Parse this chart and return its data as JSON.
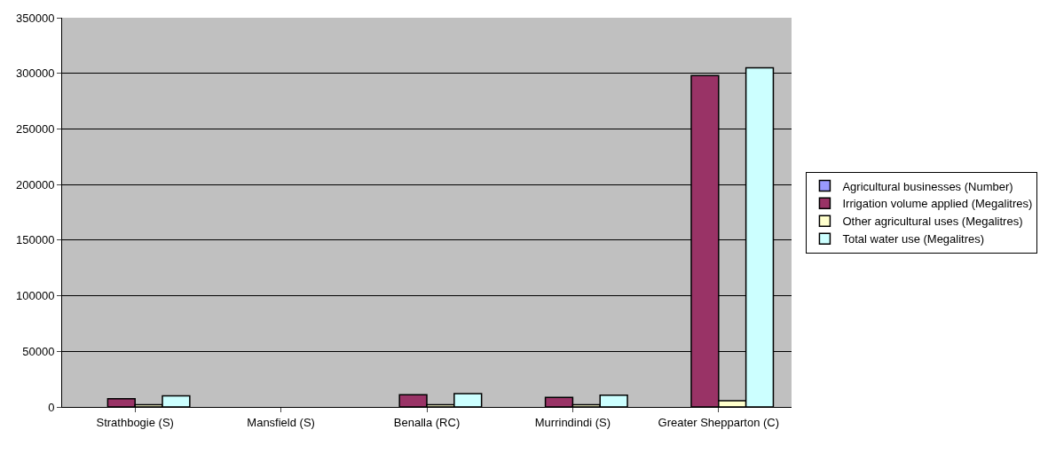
{
  "chart_data": {
    "type": "bar",
    "categories": [
      "Strathbogie (S)",
      "Mansfield (S)",
      "Benalla (RC)",
      "Murrindindi (S)",
      "Greater Shepparton (C)"
    ],
    "series": [
      {
        "name": "Agricultural businesses (Number)",
        "color": "#9999ff",
        "values": [
          null,
          null,
          null,
          null,
          null
        ]
      },
      {
        "name": "Irrigation volume applied (Megalitres)",
        "color": "#993366",
        "values": [
          7400,
          null,
          11000,
          8500,
          298000
        ]
      },
      {
        "name": "Other agricultural uses (Megalitres)",
        "color": "#ffffcc",
        "values": [
          2000,
          null,
          2000,
          2000,
          5500
        ]
      },
      {
        "name": "Total water use (Megalitres)",
        "color": "#ccffff",
        "values": [
          10000,
          null,
          12000,
          10500,
          305000
        ]
      }
    ],
    "ylim": [
      0,
      350000
    ],
    "yticks": [
      0,
      50000,
      100000,
      150000,
      200000,
      250000,
      300000,
      350000
    ],
    "grid": "y",
    "legend": "right"
  }
}
